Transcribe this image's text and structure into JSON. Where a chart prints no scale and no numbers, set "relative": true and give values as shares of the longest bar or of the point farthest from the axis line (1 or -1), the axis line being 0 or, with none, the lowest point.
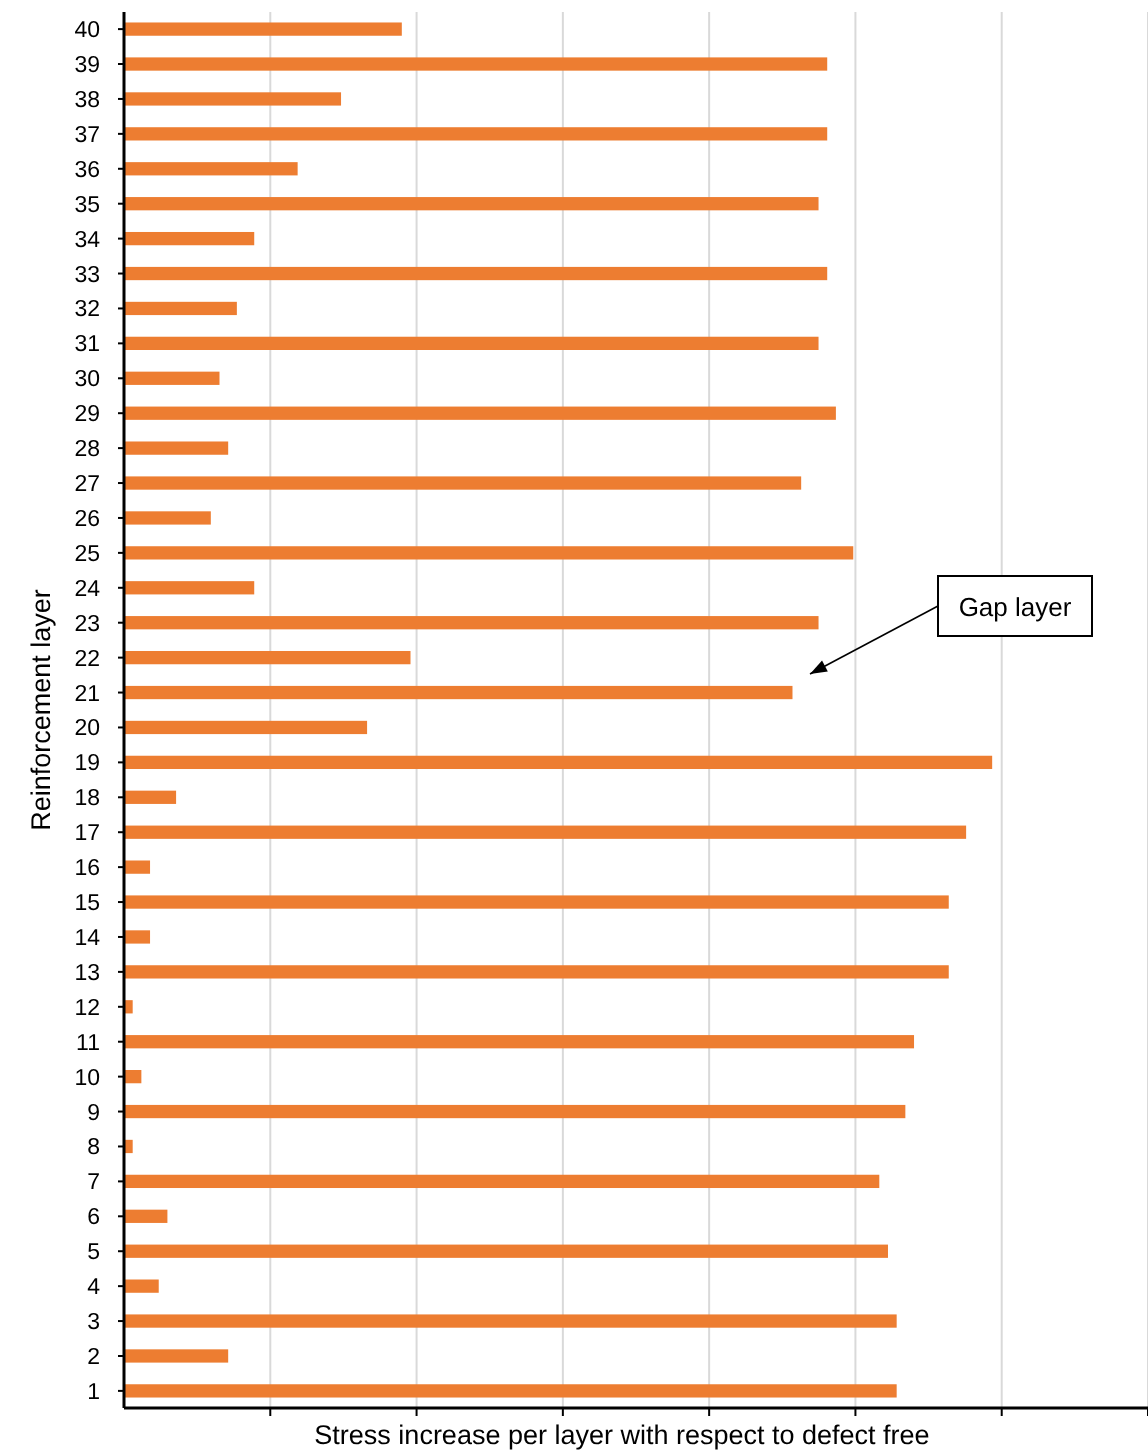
{
  "chart_data": {
    "type": "bar",
    "orientation": "horizontal",
    "relative": true,
    "grid": "x",
    "xlabel": "Stress increase per layer with respect to defect free",
    "ylabel": "Reinforcement layer",
    "categories": [
      "40",
      "39",
      "38",
      "37",
      "36",
      "35",
      "34",
      "33",
      "32",
      "31",
      "30",
      "29",
      "28",
      "27",
      "26",
      "25",
      "24",
      "23",
      "22",
      "21",
      "20",
      "19",
      "18",
      "17",
      "16",
      "15",
      "14",
      "13",
      "12",
      "11",
      "10",
      "9",
      "8",
      "7",
      "6",
      "5",
      "4",
      "3",
      "2",
      "1"
    ],
    "values": [
      0.32,
      0.81,
      0.25,
      0.81,
      0.2,
      0.8,
      0.15,
      0.81,
      0.13,
      0.8,
      0.11,
      0.82,
      0.12,
      0.78,
      0.1,
      0.84,
      0.15,
      0.8,
      0.33,
      0.77,
      0.28,
      1,
      0.06,
      0.97,
      0.03,
      0.95,
      0.03,
      0.95,
      0.01,
      0.91,
      0.02,
      0.9,
      0.01,
      0.87,
      0.05,
      0.88,
      0.04,
      0.89,
      0.12,
      0.89
    ],
    "color": "#ed7d31",
    "annotations": [
      "Gap layer"
    ]
  }
}
